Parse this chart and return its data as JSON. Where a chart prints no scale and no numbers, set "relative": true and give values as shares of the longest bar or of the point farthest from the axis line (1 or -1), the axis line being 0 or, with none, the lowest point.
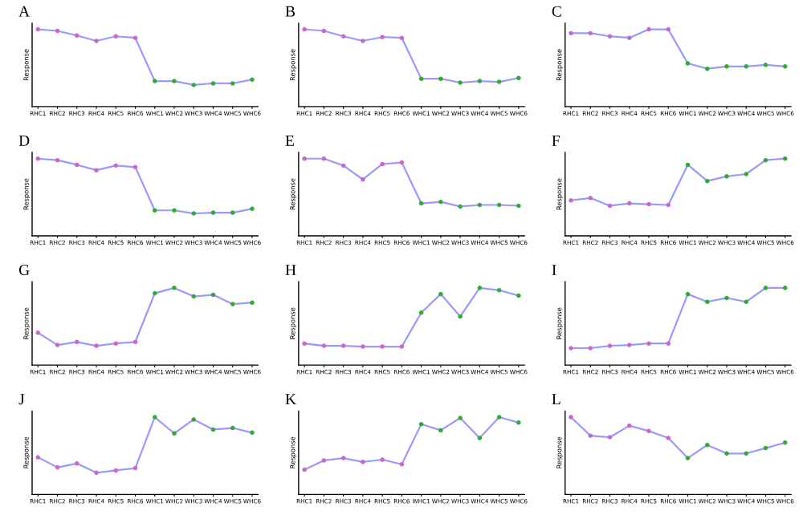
{
  "chart_data": [
    {
      "type": "line",
      "title": "A",
      "ylabel": "Response",
      "relative": true,
      "marker": "circle",
      "categories": [
        "RHC1",
        "RHC2",
        "RHC3",
        "RHC4",
        "RHC5",
        "RHC6",
        "WHC1",
        "WHC2",
        "WHC3",
        "WHC4",
        "WHC5",
        "WHC6"
      ],
      "series": [
        {
          "color": "#9999ff",
          "colors": [
            "#cc66cc",
            "#cc66cc",
            "#cc66cc",
            "#cc66cc",
            "#cc66cc",
            "#cc66cc",
            "#33aa33",
            "#33aa33",
            "#33aa33",
            "#33aa33",
            "#33aa33",
            "#33aa33"
          ],
          "values": [
            1,
            0.98,
            0.92,
            0.85,
            0.91,
            0.89,
            0.33,
            0.33,
            0.28,
            0.3,
            0.3,
            0.35
          ]
        }
      ]
    },
    {
      "type": "line",
      "title": "B",
      "ylabel": "Response",
      "relative": true,
      "marker": "circle",
      "categories": [
        "RHC1",
        "RHC2",
        "RHC3",
        "RHC4",
        "RHC5",
        "RHC6",
        "WHC1",
        "WHC2",
        "WHC3",
        "WHC4",
        "WHC5",
        "WHC6"
      ],
      "series": [
        {
          "color": "#9999ff",
          "colors": [
            "#cc66cc",
            "#cc66cc",
            "#cc66cc",
            "#cc66cc",
            "#cc66cc",
            "#cc66cc",
            "#33aa33",
            "#33aa33",
            "#33aa33",
            "#33aa33",
            "#33aa33",
            "#33aa33"
          ],
          "values": [
            1,
            0.98,
            0.91,
            0.85,
            0.9,
            0.89,
            0.36,
            0.36,
            0.31,
            0.33,
            0.32,
            0.37
          ]
        }
      ]
    },
    {
      "type": "line",
      "title": "C",
      "ylabel": "Response",
      "relative": true,
      "marker": "circle",
      "categories": [
        "RHC1",
        "RHC2",
        "RHC3",
        "RHC4",
        "RHC5",
        "RHC6",
        "WHC1",
        "WHC2",
        "WHC3",
        "WHC4",
        "WHC5",
        "WHC6"
      ],
      "series": [
        {
          "color": "#9999ff",
          "colors": [
            "#cc66cc",
            "#cc66cc",
            "#cc66cc",
            "#cc66cc",
            "#cc66cc",
            "#cc66cc",
            "#33aa33",
            "#33aa33",
            "#33aa33",
            "#33aa33",
            "#33aa33",
            "#33aa33"
          ],
          "values": [
            0.95,
            0.95,
            0.91,
            0.89,
            1,
            1,
            0.56,
            0.49,
            0.52,
            0.52,
            0.54,
            0.52
          ]
        }
      ]
    },
    {
      "type": "line",
      "title": "D",
      "ylabel": "Response",
      "relative": true,
      "marker": "circle",
      "categories": [
        "RHC1",
        "RHC2",
        "RHC3",
        "RHC4",
        "RHC5",
        "RHC6",
        "WHC1",
        "WHC2",
        "WHC3",
        "WHC4",
        "WHC5",
        "WHC6"
      ],
      "series": [
        {
          "color": "#9999ff",
          "colors": [
            "#cc66cc",
            "#cc66cc",
            "#cc66cc",
            "#cc66cc",
            "#cc66cc",
            "#cc66cc",
            "#33aa33",
            "#33aa33",
            "#33aa33",
            "#33aa33",
            "#33aa33",
            "#33aa33"
          ],
          "values": [
            1,
            0.98,
            0.92,
            0.85,
            0.91,
            0.89,
            0.33,
            0.33,
            0.29,
            0.3,
            0.3,
            0.35
          ]
        }
      ]
    },
    {
      "type": "line",
      "title": "E",
      "ylabel": "Response",
      "relative": true,
      "marker": "circle",
      "categories": [
        "RHC1",
        "RHC2",
        "RHC3",
        "RHC4",
        "RHC5",
        "RHC6",
        "WHC1",
        "WHC2",
        "WHC3",
        "WHC4",
        "WHC5",
        "WHC6"
      ],
      "series": [
        {
          "color": "#9999ff",
          "colors": [
            "#cc66cc",
            "#cc66cc",
            "#cc66cc",
            "#cc66cc",
            "#cc66cc",
            "#cc66cc",
            "#33aa33",
            "#33aa33",
            "#33aa33",
            "#33aa33",
            "#33aa33",
            "#33aa33"
          ],
          "values": [
            1,
            1,
            0.91,
            0.73,
            0.93,
            0.95,
            0.42,
            0.44,
            0.38,
            0.4,
            0.4,
            0.39
          ]
        }
      ]
    },
    {
      "type": "line",
      "title": "F",
      "ylabel": "Response",
      "relative": true,
      "marker": "circle",
      "categories": [
        "RHC1",
        "RHC2",
        "RHC3",
        "RHC4",
        "RHC5",
        "RHC6",
        "WHC1",
        "WHC2",
        "WHC3",
        "WHC4",
        "WHC5",
        "WHC6"
      ],
      "series": [
        {
          "color": "#9999ff",
          "colors": [
            "#cc66cc",
            "#cc66cc",
            "#cc66cc",
            "#cc66cc",
            "#cc66cc",
            "#cc66cc",
            "#33aa33",
            "#33aa33",
            "#33aa33",
            "#33aa33",
            "#33aa33",
            "#33aa33"
          ],
          "values": [
            0.46,
            0.49,
            0.39,
            0.42,
            0.41,
            0.4,
            0.92,
            0.71,
            0.77,
            0.8,
            0.98,
            1
          ]
        }
      ]
    },
    {
      "type": "line",
      "title": "G",
      "ylabel": "Response",
      "relative": true,
      "marker": "circle",
      "categories": [
        "RHC1",
        "RHC2",
        "RHC3",
        "RHC4",
        "RHC5",
        "RHC6",
        "WHC1",
        "WHC2",
        "WHC3",
        "WHC4",
        "WHC5",
        "WHC6"
      ],
      "series": [
        {
          "color": "#9999ff",
          "colors": [
            "#cc66cc",
            "#cc66cc",
            "#cc66cc",
            "#cc66cc",
            "#cc66cc",
            "#cc66cc",
            "#33aa33",
            "#33aa33",
            "#33aa33",
            "#33aa33",
            "#33aa33",
            "#33aa33"
          ],
          "values": [
            0.42,
            0.26,
            0.3,
            0.25,
            0.28,
            0.3,
            0.93,
            1,
            0.89,
            0.91,
            0.79,
            0.81
          ]
        }
      ]
    },
    {
      "type": "line",
      "title": "H",
      "ylabel": "Response",
      "relative": true,
      "marker": "circle",
      "categories": [
        "RHC1",
        "RHC2",
        "RHC3",
        "RHC4",
        "RHC5",
        "RHC6",
        "WHC1",
        "WHC2",
        "WHC3",
        "WHC4",
        "WHC5",
        "WHC6"
      ],
      "series": [
        {
          "color": "#9999ff",
          "colors": [
            "#cc66cc",
            "#cc66cc",
            "#cc66cc",
            "#cc66cc",
            "#cc66cc",
            "#cc66cc",
            "#33aa33",
            "#33aa33",
            "#33aa33",
            "#33aa33",
            "#33aa33",
            "#33aa33"
          ],
          "values": [
            0.28,
            0.25,
            0.25,
            0.24,
            0.24,
            0.24,
            0.68,
            0.92,
            0.63,
            1,
            0.97,
            0.9
          ]
        }
      ]
    },
    {
      "type": "line",
      "title": "I",
      "ylabel": "Response",
      "relative": true,
      "marker": "circle",
      "categories": [
        "RHC1",
        "RHC2",
        "RHC3",
        "RHC4",
        "RHC5",
        "RHC6",
        "WHC1",
        "WHC2",
        "WHC3",
        "WHC4",
        "WHC5",
        "WHC6"
      ],
      "series": [
        {
          "color": "#9999ff",
          "colors": [
            "#cc66cc",
            "#cc66cc",
            "#cc66cc",
            "#cc66cc",
            "#cc66cc",
            "#cc66cc",
            "#33aa33",
            "#33aa33",
            "#33aa33",
            "#33aa33",
            "#33aa33",
            "#33aa33"
          ],
          "values": [
            0.22,
            0.22,
            0.25,
            0.26,
            0.28,
            0.28,
            0.92,
            0.82,
            0.87,
            0.82,
            1,
            1
          ]
        }
      ]
    },
    {
      "type": "line",
      "title": "J",
      "ylabel": "Response",
      "relative": true,
      "marker": "circle",
      "categories": [
        "RHC1",
        "RHC2",
        "RHC3",
        "RHC4",
        "RHC5",
        "RHC6",
        "WHC1",
        "WHC2",
        "WHC3",
        "WHC4",
        "WHC5",
        "WHC6"
      ],
      "series": [
        {
          "color": "#9999ff",
          "colors": [
            "#cc66cc",
            "#cc66cc",
            "#cc66cc",
            "#cc66cc",
            "#cc66cc",
            "#cc66cc",
            "#33aa33",
            "#33aa33",
            "#33aa33",
            "#33aa33",
            "#33aa33",
            "#33aa33"
          ],
          "values": [
            0.48,
            0.35,
            0.4,
            0.28,
            0.31,
            0.34,
            1,
            0.79,
            0.97,
            0.84,
            0.86,
            0.8
          ]
        }
      ]
    },
    {
      "type": "line",
      "title": "K",
      "ylabel": "Response",
      "relative": true,
      "marker": "circle",
      "categories": [
        "RHC1",
        "RHC2",
        "RHC3",
        "RHC4",
        "RHC5",
        "RHC6",
        "WHC1",
        "WHC2",
        "WHC3",
        "WHC4",
        "WHC5",
        "WHC6"
      ],
      "series": [
        {
          "color": "#9999ff",
          "colors": [
            "#cc66cc",
            "#cc66cc",
            "#cc66cc",
            "#cc66cc",
            "#cc66cc",
            "#cc66cc",
            "#33aa33",
            "#33aa33",
            "#33aa33",
            "#33aa33",
            "#33aa33",
            "#33aa33"
          ],
          "values": [
            0.32,
            0.44,
            0.47,
            0.42,
            0.45,
            0.39,
            0.91,
            0.83,
            0.99,
            0.73,
            1,
            0.93
          ]
        }
      ]
    },
    {
      "type": "line",
      "title": "L",
      "ylabel": "Response",
      "relative": true,
      "marker": "circle",
      "categories": [
        "RHC1",
        "RHC2",
        "RHC3",
        "RHC4",
        "RHC5",
        "RHC6",
        "WHC1",
        "WHC2",
        "WHC3",
        "WHC4",
        "WHC5",
        "WHC6"
      ],
      "series": [
        {
          "color": "#9999ff",
          "colors": [
            "#cc66cc",
            "#cc66cc",
            "#cc66cc",
            "#cc66cc",
            "#cc66cc",
            "#cc66cc",
            "#33aa33",
            "#33aa33",
            "#33aa33",
            "#33aa33",
            "#33aa33",
            "#33aa33"
          ],
          "values": [
            1,
            0.76,
            0.74,
            0.89,
            0.82,
            0.73,
            0.47,
            0.64,
            0.53,
            0.53,
            0.6,
            0.67
          ]
        }
      ]
    }
  ]
}
